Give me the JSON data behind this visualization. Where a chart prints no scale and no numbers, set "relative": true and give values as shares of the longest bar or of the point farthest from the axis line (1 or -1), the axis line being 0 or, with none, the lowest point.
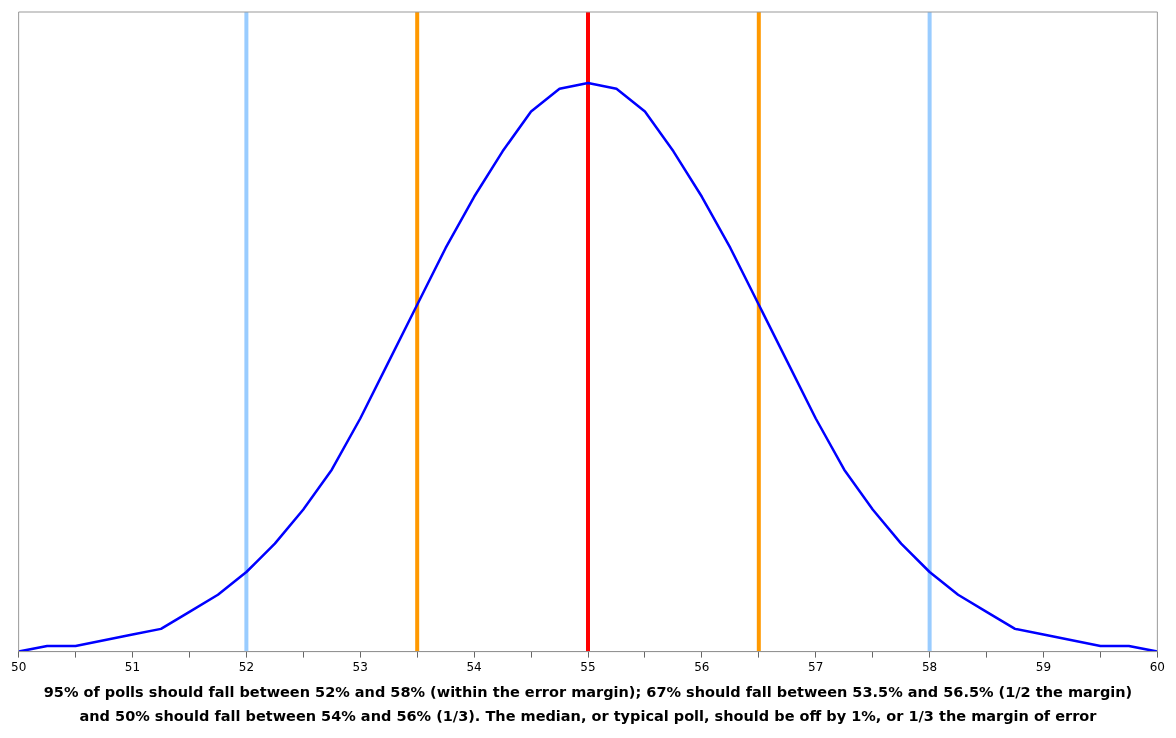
{
  "chart_data": {
    "type": "line",
    "relative": true,
    "x": [
      50,
      50.25,
      50.5,
      50.75,
      51,
      51.25,
      51.5,
      51.75,
      52,
      52.25,
      52.5,
      52.75,
      53,
      53.25,
      53.5,
      53.75,
      54,
      54.25,
      54.5,
      54.75,
      55,
      55.25,
      55.5,
      55.75,
      56,
      56.25,
      56.5,
      56.75,
      57,
      57.25,
      57.5,
      57.75,
      58,
      58.25,
      58.5,
      58.75,
      59,
      59.25,
      59.5,
      59.75,
      60
    ],
    "series": [
      {
        "color": "#0000ff",
        "values": [
          0,
          0.01,
          0.01,
          0.02,
          0.03,
          0.04,
          0.07,
          0.1,
          0.14,
          0.19,
          0.25,
          0.32,
          0.41,
          0.51,
          0.61,
          0.71,
          0.8,
          0.88,
          0.95,
          0.99,
          1,
          0.99,
          0.95,
          0.88,
          0.8,
          0.71,
          0.61,
          0.51,
          0.41,
          0.32,
          0.25,
          0.19,
          0.14,
          0.1,
          0.07,
          0.04,
          0.03,
          0.02,
          0.01,
          0.01,
          0
        ]
      }
    ],
    "xlim": [
      50,
      60
    ],
    "xticks": [
      50,
      {
        "value": 50.5,
        "label": null
      },
      51,
      {
        "value": 51.5,
        "label": null
      },
      52,
      {
        "value": 52.5,
        "label": null
      },
      53,
      {
        "value": 53.5,
        "label": null
      },
      54,
      {
        "value": 54.5,
        "label": null
      },
      55,
      {
        "value": 55.5,
        "label": null
      },
      56,
      {
        "value": 56.5,
        "label": null
      },
      57,
      {
        "value": 57.5,
        "label": null
      },
      58,
      {
        "value": 58.5,
        "label": null
      },
      59,
      {
        "value": 59.5,
        "label": null
      },
      60
    ],
    "ref_lines": [
      {
        "axis": "x",
        "value": 52,
        "color": "#99ccff"
      },
      {
        "axis": "x",
        "value": 53.5,
        "color": "#ff9900"
      },
      {
        "axis": "x",
        "value": 55,
        "color": "#ff0000"
      },
      {
        "axis": "x",
        "value": 56.5,
        "color": "#ff9900"
      },
      {
        "axis": "x",
        "value": 58,
        "color": "#99ccff"
      }
    ],
    "grid": false,
    "legend": false,
    "marker": "none",
    "line_style": "solid",
    "annotations": [
      "95% of polls should fall between 52% and 58% (within the error margin); 67% should fall between 53.5% and 56.5% (1/2 the margin)",
      "and 50% should fall between 54% and 56% (1/3). The median, or typical poll, should be off by 1%, or 1/3 the margin of error"
    ]
  }
}
